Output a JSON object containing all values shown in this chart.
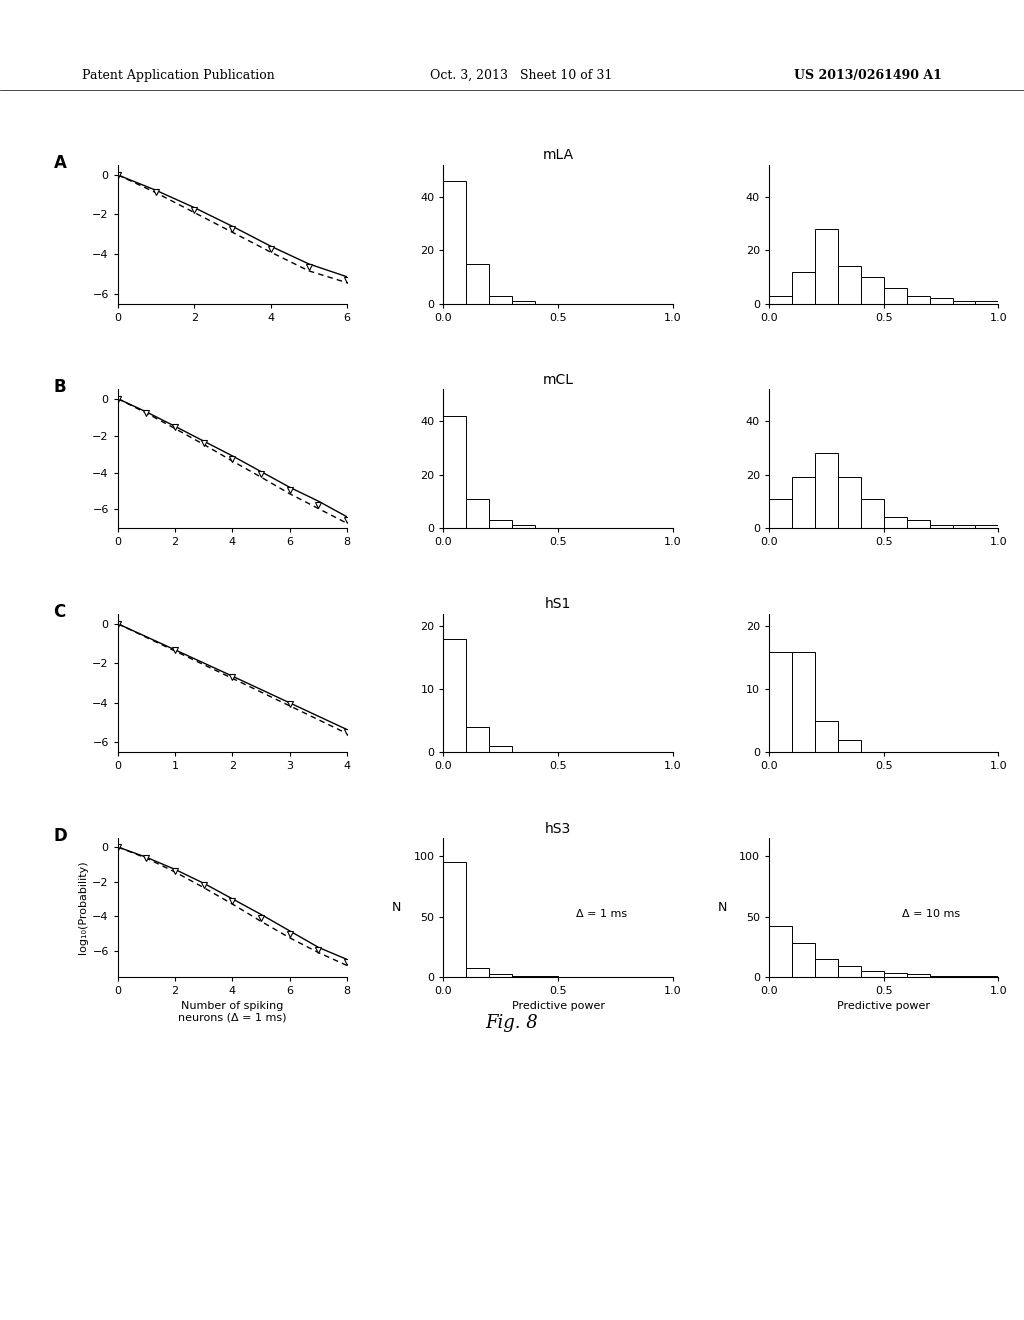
{
  "rows": [
    "A",
    "B",
    "C",
    "D"
  ],
  "titles": [
    "mLA",
    "mCL",
    "hS1",
    "hS3"
  ],
  "line_plots": {
    "A": {
      "x_solid": [
        0,
        1,
        2,
        3,
        4,
        5,
        6
      ],
      "y_solid": [
        0,
        -0.78,
        -1.65,
        -2.6,
        -3.6,
        -4.5,
        -5.15
      ],
      "x_dashed": [
        0,
        1,
        2,
        3,
        4,
        5,
        6
      ],
      "y_dashed": [
        0,
        -0.9,
        -1.9,
        -2.9,
        -3.9,
        -4.85,
        -5.45
      ],
      "x_markers": [
        0,
        1,
        2,
        3,
        4,
        5,
        6
      ],
      "y_markers": [
        0,
        -0.84,
        -1.77,
        -2.75,
        -3.75,
        -4.67,
        -5.3
      ],
      "xlim": [
        0,
        6
      ],
      "xticks": [
        0,
        2,
        4,
        6
      ],
      "ylim": [
        -6.5,
        0.5
      ],
      "yticks": [
        0,
        -2,
        -4,
        -6
      ]
    },
    "B": {
      "x_solid": [
        0,
        1,
        2,
        3,
        4,
        5,
        6,
        7,
        8
      ],
      "y_solid": [
        0,
        -0.72,
        -1.5,
        -2.3,
        -3.1,
        -3.95,
        -4.8,
        -5.55,
        -6.4
      ],
      "x_dashed": [
        0,
        1,
        2,
        3,
        4,
        5,
        6,
        7,
        8
      ],
      "y_dashed": [
        0,
        -0.78,
        -1.62,
        -2.48,
        -3.38,
        -4.25,
        -5.15,
        -5.95,
        -6.75
      ],
      "x_markers": [
        0,
        1,
        2,
        3,
        4,
        5,
        6,
        7,
        8
      ],
      "y_markers": [
        0,
        -0.75,
        -1.56,
        -2.39,
        -3.24,
        -4.1,
        -4.97,
        -5.75,
        -6.57
      ],
      "xlim": [
        0,
        8
      ],
      "xticks": [
        0,
        2,
        4,
        6,
        8
      ],
      "ylim": [
        -7,
        0.5
      ],
      "yticks": [
        0,
        -2,
        -4,
        -6
      ]
    },
    "C": {
      "x_solid": [
        0,
        1,
        2,
        3,
        4
      ],
      "y_solid": [
        0,
        -1.32,
        -2.65,
        -4.0,
        -5.35
      ],
      "x_dashed": [
        0,
        1,
        2,
        3,
        4
      ],
      "y_dashed": [
        0,
        -1.38,
        -2.76,
        -4.15,
        -5.55
      ],
      "x_markers": [
        0,
        1,
        2,
        3,
        4
      ],
      "y_markers": [
        0,
        -1.35,
        -2.7,
        -4.07,
        -5.45
      ],
      "xlim": [
        0,
        4
      ],
      "xticks": [
        0,
        1,
        2,
        3,
        4
      ],
      "ylim": [
        -6.5,
        0.5
      ],
      "yticks": [
        0,
        -2,
        -4,
        -6
      ]
    },
    "D": {
      "x_solid": [
        0,
        1,
        2,
        3,
        4,
        5,
        6,
        7,
        8
      ],
      "y_solid": [
        0,
        -0.6,
        -1.3,
        -2.1,
        -3.0,
        -3.9,
        -4.85,
        -5.8,
        -6.5
      ],
      "x_dashed": [
        0,
        1,
        2,
        3,
        4,
        5,
        6,
        7,
        8
      ],
      "y_dashed": [
        0,
        -0.65,
        -1.45,
        -2.35,
        -3.3,
        -4.3,
        -5.25,
        -6.1,
        -6.85
      ],
      "x_markers": [
        0,
        1,
        2,
        3,
        4,
        5,
        6,
        7,
        8
      ],
      "y_markers": [
        0,
        -0.62,
        -1.38,
        -2.22,
        -3.15,
        -4.1,
        -5.05,
        -5.95,
        -6.67
      ],
      "xlim": [
        0,
        8
      ],
      "xticks": [
        0,
        2,
        4,
        6,
        8
      ],
      "ylim": [
        -7.5,
        0.5
      ],
      "yticks": [
        0,
        -2,
        -4,
        -6
      ]
    }
  },
  "hist_1ms": {
    "A": {
      "bin_edges": [
        0.0,
        0.1,
        0.2,
        0.3,
        0.4,
        0.5,
        0.6,
        0.7,
        0.8,
        0.9,
        1.0
      ],
      "counts": [
        46,
        15,
        3,
        1,
        0,
        0,
        0,
        0,
        0,
        0
      ],
      "ylim": [
        0,
        52
      ],
      "yticks": [
        0,
        20,
        40
      ],
      "ylabel": ""
    },
    "B": {
      "bin_edges": [
        0.0,
        0.1,
        0.2,
        0.3,
        0.4,
        0.5,
        0.6,
        0.7,
        0.8,
        0.9,
        1.0
      ],
      "counts": [
        42,
        11,
        3,
        1,
        0,
        0,
        0,
        0,
        0,
        0
      ],
      "ylim": [
        0,
        52
      ],
      "yticks": [
        0,
        20,
        40
      ],
      "ylabel": ""
    },
    "C": {
      "bin_edges": [
        0.0,
        0.1,
        0.2,
        0.3,
        0.4,
        0.5,
        0.6,
        0.7,
        0.8,
        0.9,
        1.0
      ],
      "counts": [
        18,
        4,
        1,
        0,
        0,
        0,
        0,
        0,
        0,
        0
      ],
      "ylim": [
        0,
        22
      ],
      "yticks": [
        0,
        10,
        20
      ],
      "ylabel": ""
    },
    "D": {
      "bin_edges": [
        0.0,
        0.1,
        0.2,
        0.3,
        0.4,
        0.5,
        0.6,
        0.7,
        0.8,
        0.9,
        1.0
      ],
      "counts": [
        95,
        7,
        2,
        1,
        1,
        0,
        0,
        0,
        0,
        0
      ],
      "ylim": [
        0,
        115
      ],
      "yticks": [
        0,
        50,
        100
      ],
      "ylabel": "N"
    }
  },
  "hist_10ms": {
    "A": {
      "bin_edges": [
        0.0,
        0.1,
        0.2,
        0.3,
        0.4,
        0.5,
        0.6,
        0.7,
        0.8,
        0.9,
        1.0
      ],
      "counts": [
        3,
        12,
        28,
        14,
        10,
        6,
        3,
        2,
        1,
        1
      ],
      "ylim": [
        0,
        52
      ],
      "yticks": [
        0,
        20,
        40
      ],
      "ylabel": ""
    },
    "B": {
      "bin_edges": [
        0.0,
        0.1,
        0.2,
        0.3,
        0.4,
        0.5,
        0.6,
        0.7,
        0.8,
        0.9,
        1.0
      ],
      "counts": [
        11,
        19,
        28,
        19,
        11,
        4,
        3,
        1,
        1,
        1
      ],
      "ylim": [
        0,
        52
      ],
      "yticks": [
        0,
        20,
        40
      ],
      "ylabel": ""
    },
    "C": {
      "bin_edges": [
        0.0,
        0.1,
        0.2,
        0.3,
        0.4,
        0.5,
        0.6,
        0.7,
        0.8,
        0.9,
        1.0
      ],
      "counts": [
        16,
        16,
        5,
        2,
        0,
        0,
        0,
        0,
        0,
        0
      ],
      "ylim": [
        0,
        22
      ],
      "yticks": [
        0,
        10,
        20
      ],
      "ylabel": ""
    },
    "D": {
      "bin_edges": [
        0.0,
        0.1,
        0.2,
        0.3,
        0.4,
        0.5,
        0.6,
        0.7,
        0.8,
        0.9,
        1.0
      ],
      "counts": [
        42,
        28,
        15,
        9,
        5,
        3,
        2,
        1,
        1,
        1
      ],
      "ylim": [
        0,
        115
      ],
      "yticks": [
        0,
        50,
        100
      ],
      "ylabel": "N"
    }
  },
  "annotations": {
    "D_1ms": "Δ = 1 ms",
    "D_10ms": "Δ = 10 ms"
  },
  "xlabel_hist": "Predictive power",
  "xlabel_line_D": "Number of spiking\nneurons (Δ = 1 ms)",
  "ylabel_line": "log₁₀(Probability)",
  "fig_label": "Fig. 8",
  "header_left": "Patent Application Publication",
  "header_center": "Oct. 3, 2013   Sheet 10 of 31",
  "header_right": "US 2013/0261490 A1"
}
